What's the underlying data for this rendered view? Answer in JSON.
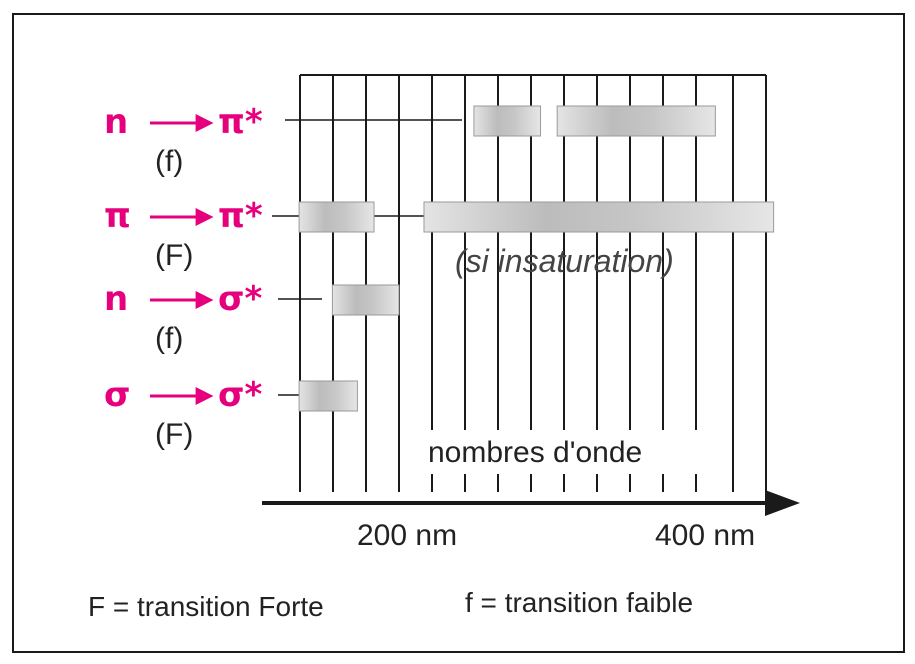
{
  "accent_color": "#e6007e",
  "band_color": "#b8b8b8",
  "transitions": [
    {
      "from": "n",
      "to": "π*",
      "strength": "(f)",
      "bands_nm": [
        [
          245,
          285
        ],
        [
          295,
          390
        ]
      ]
    },
    {
      "from": "π",
      "to": "π*",
      "strength": "(F)",
      "bands_nm": [
        [
          140,
          185
        ],
        [
          215,
          425
        ]
      ]
    },
    {
      "from": "n",
      "to": "σ*",
      "strength": "(f)",
      "bands_nm": [
        [
          160,
          200
        ]
      ]
    },
    {
      "from": "σ",
      "to": "σ*",
      "strength": "(F)",
      "bands_nm": [
        [
          140,
          175
        ]
      ]
    }
  ],
  "note_label": "(si insaturation)",
  "grid_label": "nombres d'onde",
  "axis": {
    "tick1": "200 nm",
    "tick2": "400 nm"
  },
  "legend": {
    "strong": "F = transition Forte",
    "weak": "f = transition faible"
  }
}
